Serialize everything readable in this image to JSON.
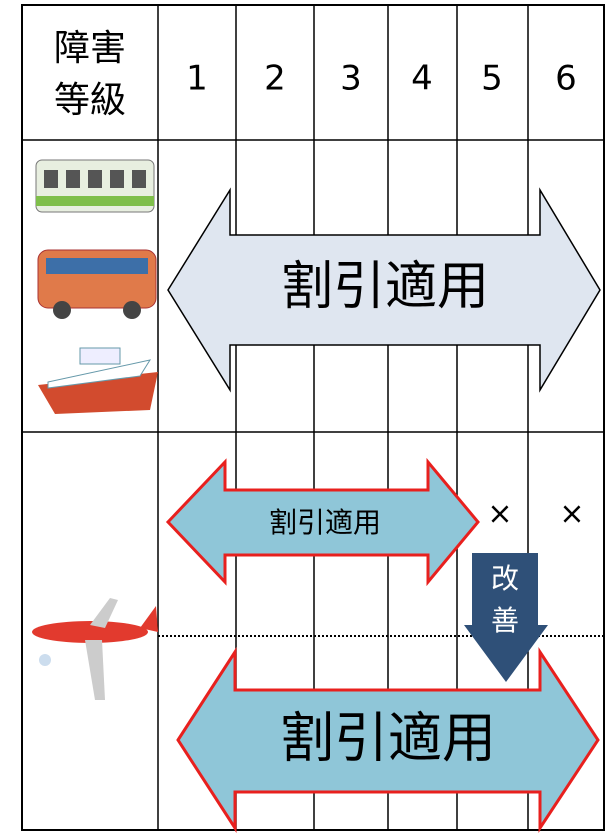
{
  "header": {
    "label_lines": [
      "障害",
      "等級"
    ],
    "grades": [
      "1",
      "2",
      "3",
      "4",
      "5",
      "6"
    ]
  },
  "rows": [
    {
      "arrow_label": "割引適用"
    },
    {
      "arrow_label": "割引適用",
      "not_applied": [
        "×",
        "×"
      ],
      "improvement_lines": [
        "改",
        "善"
      ],
      "improved_arrow_label": "割引適用"
    }
  ]
}
